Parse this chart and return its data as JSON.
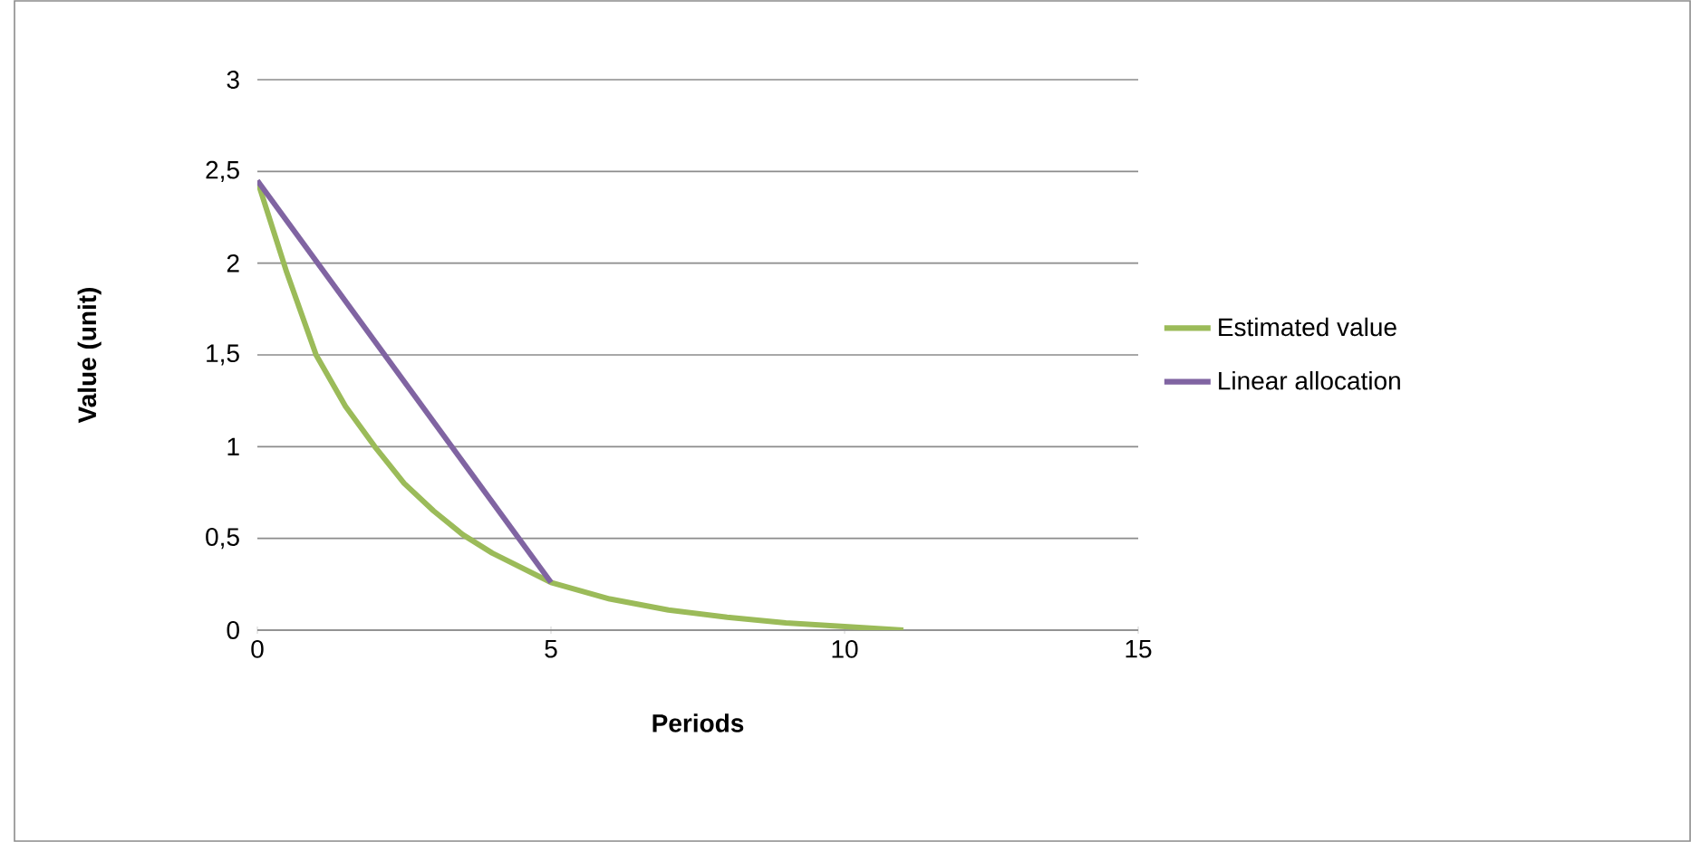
{
  "chart_data": {
    "type": "line",
    "xlabel": "Periods",
    "ylabel": "Value (unit)",
    "xlim": [
      0,
      15
    ],
    "xticks": [
      0,
      5,
      10,
      15
    ],
    "ylim": [
      0,
      3
    ],
    "yticks": [
      0,
      {
        "value": 0.5,
        "label": "0,5"
      },
      1,
      {
        "value": 1.5,
        "label": "1,5"
      },
      2,
      {
        "value": 2.5,
        "label": "2,5"
      },
      3
    ],
    "grid": "y",
    "legend": "right",
    "marker": "none",
    "line_style": "solid",
    "series": [
      {
        "name": "Estimated value",
        "color": "#9bbb59",
        "x": [
          0,
          0.5,
          1,
          1.5,
          2,
          2.5,
          3,
          3.5,
          4,
          5,
          6,
          7,
          8,
          9,
          10,
          11
        ],
        "values": [
          2.45,
          1.95,
          1.5,
          1.22,
          1.0,
          0.8,
          0.65,
          0.52,
          0.42,
          0.26,
          0.17,
          0.11,
          0.07,
          0.04,
          0.02,
          0.0
        ]
      },
      {
        "name": "Linear allocation",
        "color": "#8064a2",
        "x": [
          0,
          5
        ],
        "values": [
          2.45,
          0.26
        ]
      }
    ]
  }
}
